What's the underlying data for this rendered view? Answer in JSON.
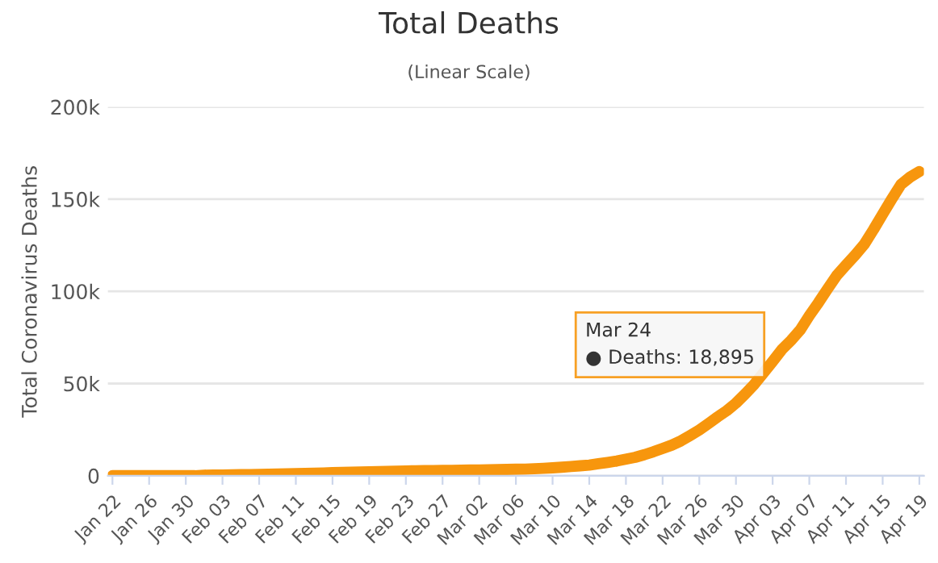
{
  "chart_data": {
    "type": "line",
    "title": "Total Deaths",
    "subtitle": "(Linear Scale)",
    "ylabel": "Total Coronavirus Deaths",
    "categories": [
      "Jan 22",
      null,
      null,
      null,
      "Jan 26",
      null,
      null,
      null,
      "Jan 30",
      null,
      null,
      null,
      "Feb 03",
      null,
      null,
      null,
      "Feb 07",
      null,
      null,
      null,
      "Feb 11",
      null,
      null,
      null,
      "Feb 15",
      null,
      null,
      null,
      "Feb 19",
      null,
      null,
      null,
      "Feb 23",
      null,
      null,
      null,
      "Feb 27",
      null,
      null,
      null,
      "Mar 02",
      null,
      null,
      null,
      "Mar 06",
      null,
      null,
      null,
      "Mar 10",
      null,
      null,
      null,
      "Mar 14",
      null,
      null,
      null,
      "Mar 18",
      null,
      null,
      null,
      "Mar 22",
      null,
      null,
      null,
      "Mar 26",
      null,
      null,
      null,
      "Mar 30",
      null,
      null,
      null,
      "Apr 03",
      null,
      null,
      null,
      "Apr 07",
      null,
      null,
      null,
      "Apr 11",
      null,
      null,
      null,
      "Apr 15",
      null,
      null,
      null,
      "Apr 19"
    ],
    "series": [
      {
        "color": "#f7960d",
        "values": [
          0,
          0,
          0,
          0,
          0,
          0,
          0,
          0,
          0,
          0,
          300,
          400,
          400,
          500,
          600,
          600,
          700,
          800,
          900,
          1000,
          1100,
          1300,
          1400,
          1500,
          1700,
          1800,
          1900,
          2000,
          2100,
          2200,
          2400,
          2500,
          2600,
          2700,
          2800,
          2800,
          2900,
          2900,
          3000,
          3100,
          3100,
          3200,
          3300,
          3400,
          3500,
          3600,
          3800,
          4000,
          4300,
          4600,
          5000,
          5400,
          5800,
          6500,
          7200,
          8000,
          9000,
          10000,
          11400,
          13000,
          14800,
          16600,
          18895,
          21800,
          24800,
          28300,
          31900,
          35300,
          39400,
          44300,
          49600,
          55700,
          62000,
          68400,
          73400,
          79000,
          86800,
          93900,
          101400,
          108700,
          114300,
          119700,
          125600,
          133500,
          141900,
          150100,
          158000,
          162000,
          165000
        ]
      }
    ],
    "ylim": [
      0,
      200000
    ],
    "yticks": [
      0,
      {
        "value": 50000,
        "label": "50k"
      },
      {
        "value": 100000,
        "label": "100k"
      },
      {
        "value": 150000,
        "label": "150k"
      },
      {
        "value": 200000,
        "label": "200k"
      }
    ],
    "grid": "y",
    "marker": "none",
    "line_style": "solid",
    "annotations": [
      "Mar 24",
      "● Deaths: 18,895"
    ]
  }
}
